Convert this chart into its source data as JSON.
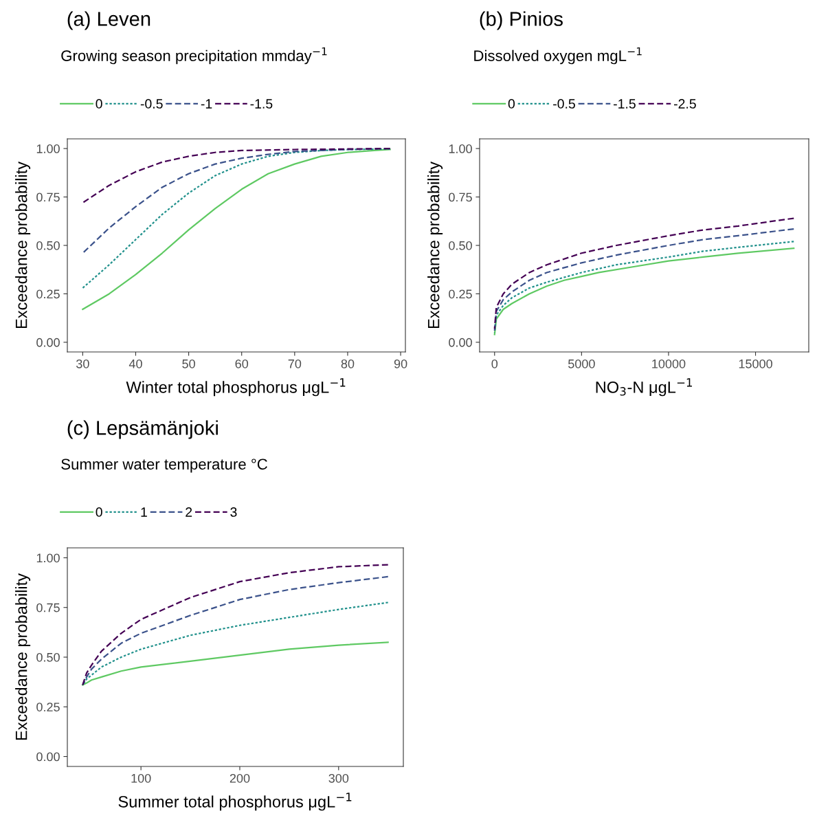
{
  "chart_data": [
    {
      "type": "line",
      "title": "(a) Leven",
      "legend_title": "Growing season precipitation mmday$^{−1}$",
      "legend": "top",
      "grid": false,
      "xlabel": "Winter total phosphorus μgL$^{−1}$",
      "ylabel": "Exceedance probability",
      "xlim": [
        27.1,
        90.9
      ],
      "xticks": [
        30,
        40,
        50,
        60,
        70,
        80,
        90
      ],
      "ylim": [
        -0.05,
        1.05
      ],
      "yticks": [
        {
          "value": 0,
          "label": "0.00"
        },
        {
          "value": 0.25,
          "label": "0.25"
        },
        {
          "value": 0.5,
          "label": "0.50"
        },
        {
          "value": 0.75,
          "label": "0.75"
        },
        {
          "value": 1,
          "label": "1.00"
        }
      ],
      "series": [
        {
          "name": "0",
          "color": "#5ec962",
          "line_style": "solid",
          "x": [
            30,
            35,
            40,
            45,
            50,
            55,
            60,
            65,
            70,
            75,
            80,
            85,
            88
          ],
          "values": [
            0.17,
            0.25,
            0.35,
            0.46,
            0.58,
            0.69,
            0.79,
            0.87,
            0.92,
            0.96,
            0.98,
            0.99,
            0.995
          ]
        },
        {
          "name": "-0.5",
          "color": "#21918c",
          "line_style": "dotted",
          "x": [
            30,
            35,
            40,
            45,
            50,
            55,
            60,
            65,
            70,
            75,
            80,
            88
          ],
          "values": [
            0.28,
            0.4,
            0.53,
            0.66,
            0.77,
            0.86,
            0.92,
            0.96,
            0.98,
            0.99,
            0.995,
            0.998
          ]
        },
        {
          "name": "-1",
          "color": "#3b528b",
          "line_style": "dashed",
          "x": [
            30,
            35,
            40,
            45,
            50,
            55,
            60,
            65,
            70,
            80,
            88
          ],
          "values": [
            0.46,
            0.59,
            0.7,
            0.8,
            0.87,
            0.92,
            0.95,
            0.97,
            0.985,
            0.995,
            1.0
          ]
        },
        {
          "name": "-1.5",
          "color": "#440154",
          "line_style": "dashed",
          "x": [
            30,
            35,
            40,
            45,
            50,
            55,
            60,
            70,
            88
          ],
          "values": [
            0.72,
            0.81,
            0.88,
            0.93,
            0.96,
            0.98,
            0.99,
            0.995,
            1.0
          ]
        }
      ]
    },
    {
      "type": "line",
      "title": "(b) Pinios",
      "legend_title": "Dissolved oxygen mgL$^{−1}$",
      "legend": "top",
      "grid": false,
      "xlabel": "NO$_{3}$-N μgL$^{−1}$",
      "ylabel": "Exceedance probability",
      "xlim": [
        -860,
        18060
      ],
      "xticks": [
        0,
        5000,
        10000,
        15000
      ],
      "ylim": [
        -0.05,
        1.05
      ],
      "yticks": [
        {
          "value": 0,
          "label": "0.00"
        },
        {
          "value": 0.25,
          "label": "0.25"
        },
        {
          "value": 0.5,
          "label": "0.50"
        },
        {
          "value": 0.75,
          "label": "0.75"
        },
        {
          "value": 1,
          "label": "1.00"
        }
      ],
      "series": [
        {
          "name": "0",
          "color": "#5ec962",
          "line_style": "solid",
          "x": [
            0,
            100,
            500,
            1000,
            2000,
            3000,
            4000,
            5000,
            6000,
            8000,
            10000,
            12000,
            14000,
            17200
          ],
          "values": [
            0.04,
            0.12,
            0.17,
            0.2,
            0.25,
            0.29,
            0.32,
            0.34,
            0.36,
            0.39,
            0.42,
            0.44,
            0.46,
            0.485
          ]
        },
        {
          "name": "-0.5",
          "color": "#21918c",
          "line_style": "dotted",
          "x": [
            0,
            100,
            500,
            1000,
            2000,
            3000,
            5000,
            7000,
            10000,
            12000,
            14000,
            17200
          ],
          "values": [
            0.05,
            0.14,
            0.19,
            0.23,
            0.28,
            0.31,
            0.36,
            0.4,
            0.44,
            0.47,
            0.49,
            0.52
          ]
        },
        {
          "name": "-1.5",
          "color": "#3b528b",
          "line_style": "dashed",
          "x": [
            0,
            100,
            500,
            1000,
            2000,
            3000,
            5000,
            7000,
            10000,
            12000,
            14000,
            17200
          ],
          "values": [
            0.06,
            0.16,
            0.22,
            0.26,
            0.32,
            0.36,
            0.41,
            0.45,
            0.5,
            0.53,
            0.55,
            0.585
          ]
        },
        {
          "name": "-2.5",
          "color": "#440154",
          "line_style": "dashed",
          "x": [
            0,
            100,
            500,
            1000,
            2000,
            3000,
            5000,
            7000,
            10000,
            12000,
            14000,
            17200
          ],
          "values": [
            0.07,
            0.18,
            0.25,
            0.3,
            0.36,
            0.4,
            0.46,
            0.5,
            0.55,
            0.58,
            0.6,
            0.64
          ]
        }
      ]
    },
    {
      "type": "line",
      "title": "(c) Lepsämänjoki",
      "legend_title": "Summer water temperature °C",
      "legend": "top",
      "grid": false,
      "xlabel": "Summer total phosphorus μgL$^{−1}$",
      "ylabel": "Exceedance probability",
      "xlim": [
        25.5,
        365.5
      ],
      "xticks": [
        100,
        200,
        300
      ],
      "ylim": [
        -0.05,
        1.05
      ],
      "yticks": [
        {
          "value": 0,
          "label": "0.00"
        },
        {
          "value": 0.25,
          "label": "0.25"
        },
        {
          "value": 0.5,
          "label": "0.50"
        },
        {
          "value": 0.75,
          "label": "0.75"
        },
        {
          "value": 1,
          "label": "1.00"
        }
      ],
      "series": [
        {
          "name": "0",
          "color": "#5ec962",
          "line_style": "solid",
          "x": [
            41,
            45,
            50,
            60,
            80,
            100,
            150,
            200,
            250,
            300,
            350
          ],
          "values": [
            0.36,
            0.37,
            0.385,
            0.4,
            0.43,
            0.45,
            0.48,
            0.51,
            0.54,
            0.56,
            0.575
          ]
        },
        {
          "name": "1",
          "color": "#21918c",
          "line_style": "dotted",
          "x": [
            41,
            45,
            50,
            60,
            80,
            100,
            150,
            200,
            250,
            300,
            350
          ],
          "values": [
            0.36,
            0.39,
            0.41,
            0.45,
            0.5,
            0.54,
            0.61,
            0.66,
            0.7,
            0.74,
            0.775
          ]
        },
        {
          "name": "2",
          "color": "#3b528b",
          "line_style": "dashed",
          "x": [
            41,
            45,
            50,
            60,
            80,
            100,
            150,
            200,
            250,
            300,
            350
          ],
          "values": [
            0.36,
            0.4,
            0.44,
            0.49,
            0.57,
            0.62,
            0.71,
            0.79,
            0.84,
            0.875,
            0.905
          ]
        },
        {
          "name": "3",
          "color": "#440154",
          "line_style": "dashed",
          "x": [
            41,
            45,
            50,
            60,
            80,
            100,
            150,
            200,
            250,
            300,
            350
          ],
          "values": [
            0.36,
            0.42,
            0.46,
            0.53,
            0.62,
            0.69,
            0.8,
            0.88,
            0.925,
            0.955,
            0.965
          ]
        }
      ]
    }
  ]
}
